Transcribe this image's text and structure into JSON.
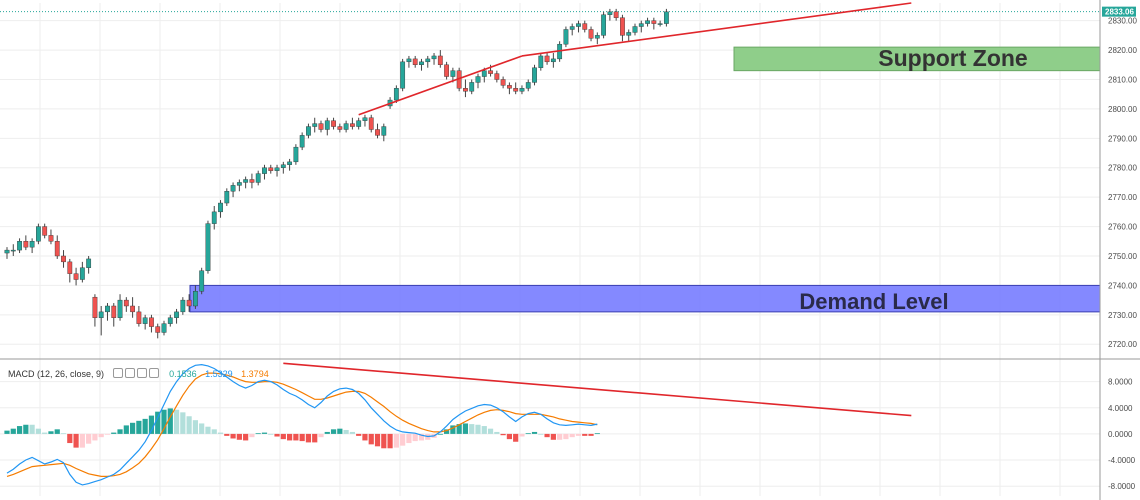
{
  "colors": {
    "up": "#26a69a",
    "down": "#ef5350",
    "trendline": "#e0262b",
    "support_zone_fill": "#8fce8a",
    "demand_fill": "#6f74ff",
    "macd_line": "#2196f3",
    "signal_line": "#f57c00",
    "hist_up_strong": "#26a69a",
    "hist_up_weak": "#b2dfdb",
    "hist_down_strong": "#ef5350",
    "hist_down_weak": "#ffcdd2",
    "grid": "#eeeeee",
    "last_price_badge": "#26a69a"
  },
  "annotations": {
    "support_zone": "Support Zone",
    "demand_level": "Demand Level"
  },
  "macd_legend": {
    "label": "MACD (12, 26, close, 9)",
    "histogram_value": "0.1536",
    "macd_value": "1.5329",
    "signal_value": "1.3794"
  },
  "chart_data": [
    {
      "type": "candlestick",
      "pane": "price",
      "y_ticks": [
        "2830.00",
        "2820.00",
        "2810.00",
        "2800.00",
        "2790.00",
        "2780.00",
        "2770.00",
        "2760.00",
        "2750.00",
        "2740.00",
        "2730.00",
        "2720.00"
      ],
      "ylim": [
        2716,
        2836
      ],
      "last_price": "2833.06",
      "zones": [
        {
          "label": "Support Zone",
          "y_low": 2813,
          "y_high": 2821
        },
        {
          "label": "Demand Level",
          "y_low": 2731,
          "y_high": 2740
        }
      ],
      "trendlines": [
        {
          "from": [
            56,
            2798
          ],
          "to": [
            82,
            2818
          ]
        },
        {
          "from": [
            82,
            2818
          ],
          "to": [
            144,
            2836
          ]
        }
      ],
      "candles": [
        [
          2751,
          2753,
          2749,
          2752
        ],
        [
          2752,
          2754,
          2750,
          2752
        ],
        [
          2752,
          2756,
          2751,
          2755
        ],
        [
          2755,
          2757,
          2752,
          2753
        ],
        [
          2753,
          2756,
          2751,
          2755
        ],
        [
          2755,
          2761,
          2754,
          2760
        ],
        [
          2760,
          2761,
          2756,
          2757
        ],
        [
          2757,
          2759,
          2754,
          2755
        ],
        [
          2755,
          2757,
          2749,
          2750
        ],
        [
          2750,
          2752,
          2746,
          2748
        ],
        [
          2748,
          2749,
          2741,
          2744
        ],
        [
          2744,
          2746,
          2740,
          2742
        ],
        [
          2742,
          2748,
          2741,
          2746
        ],
        [
          2746,
          2750,
          2744,
          2749
        ],
        [
          2736,
          2737,
          2726,
          2729
        ],
        [
          2729,
          2733,
          2723,
          2731
        ],
        [
          2731,
          2734,
          2728,
          2733
        ],
        [
          2733,
          2734,
          2726,
          2729
        ],
        [
          2729,
          2737,
          2728,
          2735
        ],
        [
          2735,
          2736,
          2731,
          2733
        ],
        [
          2733,
          2736,
          2729,
          2731
        ],
        [
          2731,
          2733,
          2726,
          2727
        ],
        [
          2727,
          2730,
          2725,
          2729
        ],
        [
          2729,
          2730,
          2724,
          2726
        ],
        [
          2726,
          2727,
          2722,
          2724
        ],
        [
          2724,
          2728,
          2723,
          2727
        ],
        [
          2727,
          2730,
          2726,
          2729
        ],
        [
          2729,
          2732,
          2727,
          2731
        ],
        [
          2731,
          2736,
          2730,
          2735
        ],
        [
          2735,
          2737,
          2731,
          2733
        ],
        [
          2733,
          2740,
          2732,
          2738
        ],
        [
          2738,
          2746,
          2737,
          2745
        ],
        [
          2745,
          2762,
          2744,
          2761
        ],
        [
          2761,
          2767,
          2759,
          2765
        ],
        [
          2765,
          2769,
          2763,
          2768
        ],
        [
          2768,
          2773,
          2767,
          2772
        ],
        [
          2772,
          2775,
          2770,
          2774
        ],
        [
          2774,
          2776,
          2772,
          2775
        ],
        [
          2775,
          2777,
          2773,
          2776
        ],
        [
          2776,
          2778,
          2773,
          2775
        ],
        [
          2775,
          2779,
          2774,
          2778
        ],
        [
          2778,
          2781,
          2776,
          2780
        ],
        [
          2780,
          2781,
          2778,
          2779
        ],
        [
          2779,
          2781,
          2777,
          2780
        ],
        [
          2780,
          2782,
          2778,
          2781
        ],
        [
          2781,
          2783,
          2779,
          2782
        ],
        [
          2782,
          2788,
          2781,
          2787
        ],
        [
          2787,
          2792,
          2786,
          2791
        ],
        [
          2791,
          2795,
          2790,
          2794
        ],
        [
          2794,
          2797,
          2792,
          2795
        ],
        [
          2795,
          2796,
          2792,
          2793
        ],
        [
          2793,
          2797,
          2791,
          2796
        ],
        [
          2796,
          2797,
          2793,
          2794
        ],
        [
          2794,
          2795,
          2792,
          2793
        ],
        [
          2793,
          2796,
          2792,
          2795
        ],
        [
          2795,
          2797,
          2793,
          2794
        ],
        [
          2794,
          2797,
          2793,
          2796
        ],
        [
          2796,
          2798,
          2794,
          2797
        ],
        [
          2797,
          2798,
          2792,
          2793
        ],
        [
          2793,
          2795,
          2790,
          2791
        ],
        [
          2791,
          2795,
          2789,
          2794
        ],
        [
          2801,
          2804,
          2800,
          2803
        ],
        [
          2803,
          2808,
          2802,
          2807
        ],
        [
          2807,
          2817,
          2806,
          2816
        ],
        [
          2816,
          2818,
          2814,
          2817
        ],
        [
          2817,
          2818,
          2814,
          2815
        ],
        [
          2815,
          2817,
          2813,
          2816
        ],
        [
          2816,
          2818,
          2814,
          2817
        ],
        [
          2817,
          2819,
          2815,
          2818
        ],
        [
          2818,
          2820,
          2814,
          2815
        ],
        [
          2815,
          2816,
          2810,
          2811
        ],
        [
          2811,
          2814,
          2809,
          2813
        ],
        [
          2813,
          2814,
          2806,
          2807
        ],
        [
          2807,
          2810,
          2804,
          2806
        ],
        [
          2806,
          2810,
          2805,
          2809
        ],
        [
          2809,
          2812,
          2807,
          2811
        ],
        [
          2811,
          2814,
          2809,
          2813
        ],
        [
          2813,
          2815,
          2811,
          2812
        ],
        [
          2812,
          2813,
          2809,
          2810
        ],
        [
          2810,
          2811,
          2807,
          2808
        ],
        [
          2808,
          2809,
          2805,
          2807
        ],
        [
          2807,
          2809,
          2805,
          2806
        ],
        [
          2806,
          2808,
          2805,
          2807
        ],
        [
          2807,
          2810,
          2806,
          2809
        ],
        [
          2809,
          2815,
          2808,
          2814
        ],
        [
          2814,
          2819,
          2813,
          2818
        ],
        [
          2818,
          2819,
          2815,
          2816
        ],
        [
          2816,
          2819,
          2814,
          2817
        ],
        [
          2817,
          2823,
          2816,
          2822
        ],
        [
          2822,
          2828,
          2821,
          2827
        ],
        [
          2827,
          2829,
          2825,
          2828
        ],
        [
          2828,
          2830,
          2826,
          2829
        ],
        [
          2829,
          2830,
          2826,
          2827
        ],
        [
          2827,
          2828,
          2823,
          2824
        ],
        [
          2824,
          2826,
          2822,
          2825
        ],
        [
          2825,
          2833,
          2824,
          2832
        ],
        [
          2832,
          2834,
          2830,
          2833
        ],
        [
          2833,
          2834,
          2830,
          2831
        ],
        [
          2831,
          2832,
          2823,
          2825
        ],
        [
          2825,
          2827,
          2823,
          2826
        ],
        [
          2826,
          2829,
          2825,
          2828
        ],
        [
          2828,
          2830,
          2826,
          2829
        ],
        [
          2829,
          2831,
          2828,
          2830
        ],
        [
          2830,
          2831,
          2827,
          2829
        ],
        [
          2829,
          2830,
          2828,
          2829
        ],
        [
          2829,
          2834,
          2828,
          2833
        ]
      ]
    },
    {
      "type": "macd",
      "pane": "indicator",
      "y_ticks": [
        "8.0000",
        "4.0000",
        "0.0000",
        "-4.0000",
        "-8.0000"
      ],
      "ylim": [
        -9.5,
        11
      ],
      "trendline": {
        "from": [
          44,
          10.8
        ],
        "to": [
          144,
          2.8
        ]
      },
      "macd": [
        -6,
        -5.4,
        -4.6,
        -4,
        -3.6,
        -4.1,
        -4.6,
        -4.3,
        -3.9,
        -4.4,
        -6.2,
        -7.4,
        -7.8,
        -7.6,
        -7.3,
        -7,
        -6.6,
        -6.2,
        -5.5,
        -4.5,
        -3.5,
        -2.5,
        -1.2,
        0.5,
        2.5,
        4.5,
        6.5,
        8,
        9.2,
        10,
        10.5,
        10.6,
        10.4,
        10,
        9.4,
        8.7,
        8,
        7.4,
        7,
        7.4,
        8,
        8.2,
        8,
        7.5,
        6.8,
        6.2,
        5.8,
        5.2,
        4.5,
        4,
        4.8,
        5.8,
        6.5,
        6.9,
        7,
        6.8,
        6.2,
        5.2,
        4,
        3,
        2,
        1.2,
        0.6,
        0.3,
        0.2,
        0.1,
        -0.2,
        -0.4,
        -0.3,
        0.3,
        1.2,
        2.2,
        2.9,
        3.5,
        3.9,
        4.3,
        4.5,
        4.4,
        4,
        3.4,
        2.6,
        1.9,
        2.6,
        3.1,
        3.3,
        3,
        2.3,
        1.7,
        1.4,
        1.3,
        1.4,
        1.5,
        1.4,
        1.3,
        1.5
      ],
      "signal": [
        -6.5,
        -6.2,
        -5.8,
        -5.4,
        -5,
        -4.9,
        -4.8,
        -4.7,
        -4.6,
        -4.5,
        -4.8,
        -5.3,
        -5.7,
        -6.1,
        -6.3,
        -6.5,
        -6.5,
        -6.4,
        -6.2,
        -5.8,
        -5.2,
        -4.5,
        -3.5,
        -2.3,
        -0.9,
        0.8,
        2.6,
        4.3,
        5.9,
        7.3,
        8.4,
        9,
        9.3,
        9.3,
        9.2,
        9,
        8.7,
        8.3,
        8,
        7.9,
        7.9,
        8,
        8,
        7.9,
        7.6,
        7.2,
        6.8,
        6.3,
        5.8,
        5.3,
        5.3,
        5.5,
        5.8,
        6.1,
        6.4,
        6.5,
        6.5,
        6.2,
        5.6,
        4.9,
        4.2,
        3.4,
        2.7,
        2.1,
        1.6,
        1.2,
        0.8,
        0.5,
        0.3,
        0.3,
        0.5,
        0.9,
        1.4,
        1.9,
        2.4,
        2.9,
        3.3,
        3.6,
        3.7,
        3.6,
        3.4,
        3.1,
        3,
        3,
        3,
        3,
        2.8,
        2.6,
        2.3,
        2.1,
        1.9,
        1.8,
        1.7,
        1.6,
        1.4
      ]
    }
  ]
}
